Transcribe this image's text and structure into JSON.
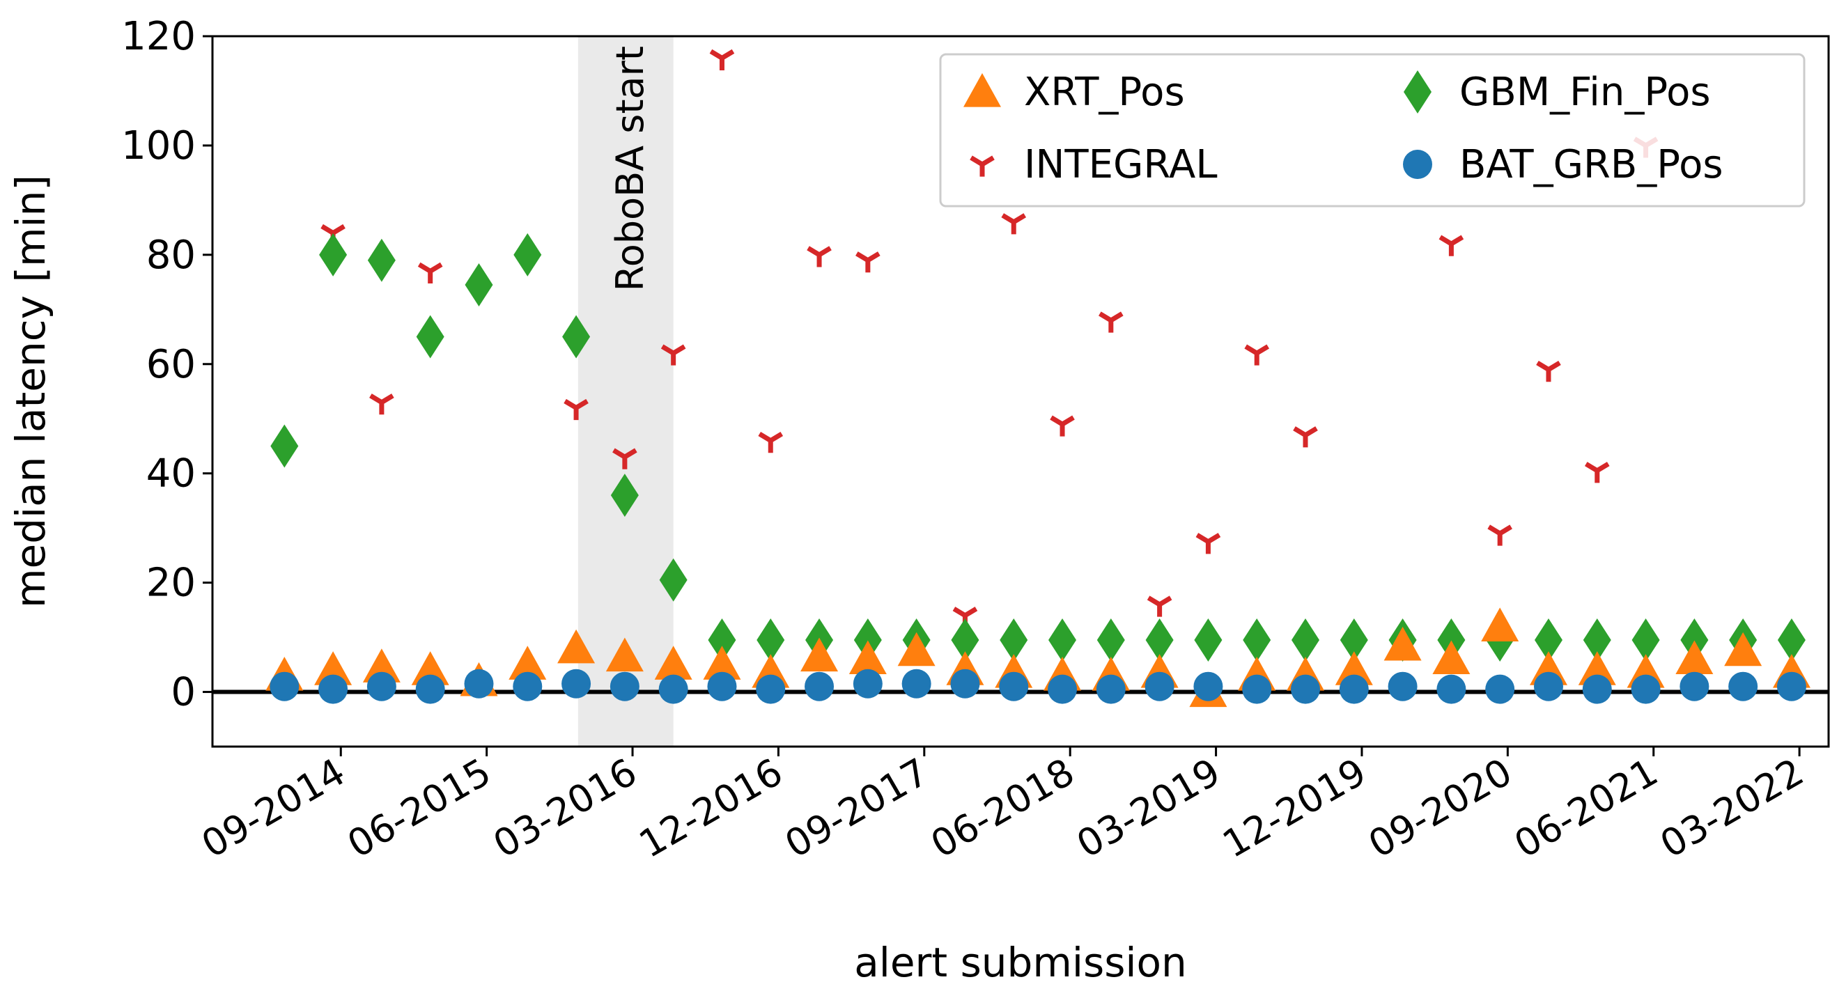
{
  "chart_data": {
    "type": "scatter",
    "xlabel": "alert submission",
    "ylabel": "median latency [min]",
    "ylim": [
      -10,
      120
    ],
    "yticks": [
      0,
      20,
      40,
      60,
      80,
      100,
      120
    ],
    "xlim": [
      2014.05,
      2022.36
    ],
    "xticks": [
      {
        "value": 2014.71,
        "label": "09-2014"
      },
      {
        "value": 2015.46,
        "label": "06-2015"
      },
      {
        "value": 2016.21,
        "label": "03-2016"
      },
      {
        "value": 2016.96,
        "label": "12-2016"
      },
      {
        "value": 2017.71,
        "label": "09-2017"
      },
      {
        "value": 2018.46,
        "label": "06-2018"
      },
      {
        "value": 2019.21,
        "label": "03-2019"
      },
      {
        "value": 2019.96,
        "label": "12-2019"
      },
      {
        "value": 2020.71,
        "label": "09-2020"
      },
      {
        "value": 2021.46,
        "label": "06-2021"
      },
      {
        "value": 2022.21,
        "label": "03-2022"
      }
    ],
    "reference_line_y": 0,
    "shaded_region": {
      "x_start": 2015.93,
      "x_end": 2016.42,
      "label": "RoboBA start"
    },
    "legend_position": "top-right",
    "series": [
      {
        "name": "XRT_Pos",
        "marker": "triangle-up",
        "color": "#ff7f0e",
        "x": [
          2014.42,
          2014.67,
          2014.92,
          2015.17,
          2015.42,
          2015.67,
          2015.92,
          2016.17,
          2016.42,
          2016.67,
          2016.92,
          2017.17,
          2017.42,
          2017.67,
          2017.92,
          2018.17,
          2018.42,
          2018.67,
          2018.92,
          2019.17,
          2019.42,
          2019.67,
          2019.92,
          2020.17,
          2020.42,
          2020.67,
          2020.92,
          2021.17,
          2021.42,
          2021.67,
          2021.92,
          2022.17
        ],
        "y": [
          3,
          4,
          4.5,
          4,
          2,
          5,
          8,
          6.5,
          5,
          5,
          3.5,
          6.5,
          6,
          7.5,
          4,
          3.5,
          3,
          3,
          3.5,
          0,
          3,
          3,
          4,
          8.5,
          6,
          12,
          4,
          4,
          3.5,
          6,
          7.5,
          3.5
        ]
      },
      {
        "name": "INTEGRAL",
        "marker": "tri",
        "color": "#d62728",
        "x": [
          2014.67,
          2014.92,
          2015.17,
          2015.92,
          2016.17,
          2016.42,
          2016.67,
          2016.92,
          2017.17,
          2017.42,
          2017.92,
          2018.17,
          2018.42,
          2018.67,
          2018.92,
          2019.17,
          2019.42,
          2019.67,
          2020.42,
          2020.67,
          2020.92,
          2021.17,
          2021.42
        ],
        "y": [
          84,
          53,
          77,
          52,
          43,
          62,
          116,
          46,
          80,
          79,
          14,
          86,
          49,
          68,
          16,
          27.5,
          62,
          47,
          82,
          29,
          59,
          40.5,
          100
        ]
      },
      {
        "name": "GBM_Fin_Pos",
        "marker": "diamond",
        "color": "#2ca02c",
        "x": [
          2014.42,
          2014.67,
          2014.92,
          2015.17,
          2015.42,
          2015.67,
          2015.92,
          2016.17,
          2016.42,
          2016.67,
          2016.92,
          2017.17,
          2017.42,
          2017.67,
          2017.92,
          2018.17,
          2018.42,
          2018.67,
          2018.92,
          2019.17,
          2019.42,
          2019.67,
          2019.92,
          2020.17,
          2020.42,
          2020.67,
          2020.92,
          2021.17,
          2021.42,
          2021.67,
          2021.92,
          2022.17
        ],
        "y": [
          45,
          80,
          79,
          65,
          74.5,
          80,
          65,
          36,
          20.5,
          9.5,
          9.5,
          9.5,
          9.5,
          9.5,
          9.5,
          9.5,
          9.5,
          9.5,
          9.5,
          9.5,
          9.5,
          9.5,
          9.5,
          9.5,
          9.5,
          9.5,
          9.5,
          9.5,
          9.5,
          9.5,
          9.5,
          9.5
        ]
      },
      {
        "name": "BAT_GRB_Pos",
        "marker": "circle",
        "color": "#1f77b4",
        "x": [
          2014.42,
          2014.67,
          2014.92,
          2015.17,
          2015.42,
          2015.67,
          2015.92,
          2016.17,
          2016.42,
          2016.67,
          2016.92,
          2017.17,
          2017.42,
          2017.67,
          2017.92,
          2018.17,
          2018.42,
          2018.67,
          2018.92,
          2019.17,
          2019.42,
          2019.67,
          2019.92,
          2020.17,
          2020.42,
          2020.67,
          2020.92,
          2021.17,
          2021.42,
          2021.67,
          2021.92,
          2022.17
        ],
        "y": [
          1,
          0.5,
          1,
          0.5,
          1.5,
          1,
          1.5,
          1,
          0.5,
          1,
          0.5,
          1,
          1.5,
          1.5,
          1.5,
          1,
          0.5,
          0.5,
          1,
          1,
          0.5,
          0.5,
          0.5,
          1,
          0.5,
          0.5,
          1,
          0.5,
          0.5,
          1,
          1,
          1
        ]
      }
    ]
  }
}
